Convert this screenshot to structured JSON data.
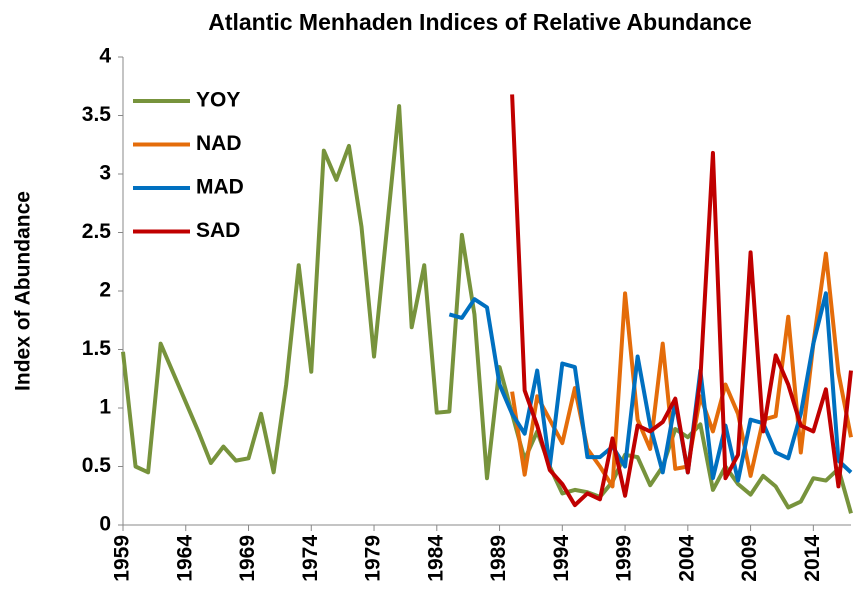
{
  "chart_data": {
    "type": "line",
    "title": "Atlantic Menhaden Indices of Relative Abundance",
    "y_label": "Index of Abundance",
    "x": [
      1959,
      1960,
      1961,
      1962,
      1963,
      1964,
      1965,
      1966,
      1967,
      1968,
      1969,
      1970,
      1971,
      1972,
      1973,
      1974,
      1975,
      1976,
      1977,
      1978,
      1979,
      1980,
      1981,
      1982,
      1983,
      1984,
      1985,
      1986,
      1987,
      1988,
      1989,
      1990,
      1991,
      1992,
      1993,
      1994,
      1995,
      1996,
      1997,
      1998,
      1999,
      2000,
      2001,
      2002,
      2003,
      2004,
      2005,
      2006,
      2007,
      2008,
      2009,
      2010,
      2011,
      2012,
      2013,
      2014,
      2015,
      2016,
      2017
    ],
    "xlim": [
      1959,
      2017
    ],
    "xticks": [
      1959,
      1964,
      1969,
      1974,
      1979,
      1984,
      1989,
      1994,
      1999,
      2004,
      2009,
      2014
    ],
    "ylim": [
      0,
      4
    ],
    "yticks": [
      0,
      0.5,
      1,
      1.5,
      2,
      2.5,
      3,
      3.5,
      4
    ],
    "grid": false,
    "legend": "upper left",
    "series": [
      {
        "name": "YOY",
        "color": "#77933c",
        "values": [
          1.48,
          0.5,
          0.45,
          1.55,
          1.3,
          1.05,
          0.8,
          0.53,
          0.67,
          0.55,
          0.57,
          0.95,
          0.45,
          1.2,
          2.22,
          1.31,
          3.2,
          2.95,
          3.24,
          2.55,
          1.44,
          2.5,
          3.58,
          1.69,
          2.22,
          0.96,
          0.97,
          2.48,
          1.8,
          0.4,
          1.35,
          0.95,
          0.56,
          0.8,
          0.5,
          0.27,
          0.3,
          0.28,
          0.24,
          0.37,
          0.6,
          0.58,
          0.34,
          0.5,
          0.82,
          0.75,
          0.86,
          0.3,
          0.5,
          0.35,
          0.26,
          0.42,
          0.33,
          0.15,
          0.2,
          0.4,
          0.38,
          0.48,
          0.1
        ]
      },
      {
        "name": "NAD",
        "color": "#e46c0a",
        "values": [
          null,
          null,
          null,
          null,
          null,
          null,
          null,
          null,
          null,
          null,
          null,
          null,
          null,
          null,
          null,
          null,
          null,
          null,
          null,
          null,
          null,
          null,
          null,
          null,
          null,
          null,
          null,
          null,
          null,
          null,
          null,
          1.14,
          0.43,
          1.1,
          0.9,
          0.7,
          1.17,
          0.65,
          0.5,
          0.33,
          1.98,
          0.9,
          0.65,
          1.55,
          0.48,
          0.5,
          1.1,
          0.8,
          1.2,
          0.95,
          0.42,
          0.9,
          0.93,
          1.78,
          0.62,
          1.55,
          2.32,
          1.3,
          0.75
        ]
      },
      {
        "name": "MAD",
        "color": "#0070c0",
        "values": [
          null,
          null,
          null,
          null,
          null,
          null,
          null,
          null,
          null,
          null,
          null,
          null,
          null,
          null,
          null,
          null,
          null,
          null,
          null,
          null,
          null,
          null,
          null,
          null,
          null,
          null,
          1.8,
          1.77,
          1.93,
          1.86,
          1.2,
          0.95,
          0.78,
          1.32,
          0.5,
          1.38,
          1.35,
          0.58,
          0.58,
          0.67,
          0.5,
          1.44,
          0.85,
          0.45,
          1.05,
          0.45,
          1.32,
          0.4,
          0.85,
          0.38,
          0.9,
          0.87,
          0.62,
          0.57,
          0.95,
          1.55,
          1.98,
          0.55,
          0.45
        ]
      },
      {
        "name": "SAD",
        "color": "#c00000",
        "values": [
          null,
          null,
          null,
          null,
          null,
          null,
          null,
          null,
          null,
          null,
          null,
          null,
          null,
          null,
          null,
          null,
          null,
          null,
          null,
          null,
          null,
          null,
          null,
          null,
          null,
          null,
          null,
          null,
          null,
          null,
          null,
          3.68,
          1.15,
          0.85,
          0.47,
          0.35,
          0.17,
          0.27,
          0.22,
          0.74,
          0.25,
          0.85,
          0.8,
          0.88,
          1.08,
          0.45,
          1.25,
          3.18,
          0.4,
          0.6,
          2.33,
          0.8,
          1.45,
          1.2,
          0.85,
          0.8,
          1.16,
          0.33,
          1.32
        ]
      }
    ]
  }
}
